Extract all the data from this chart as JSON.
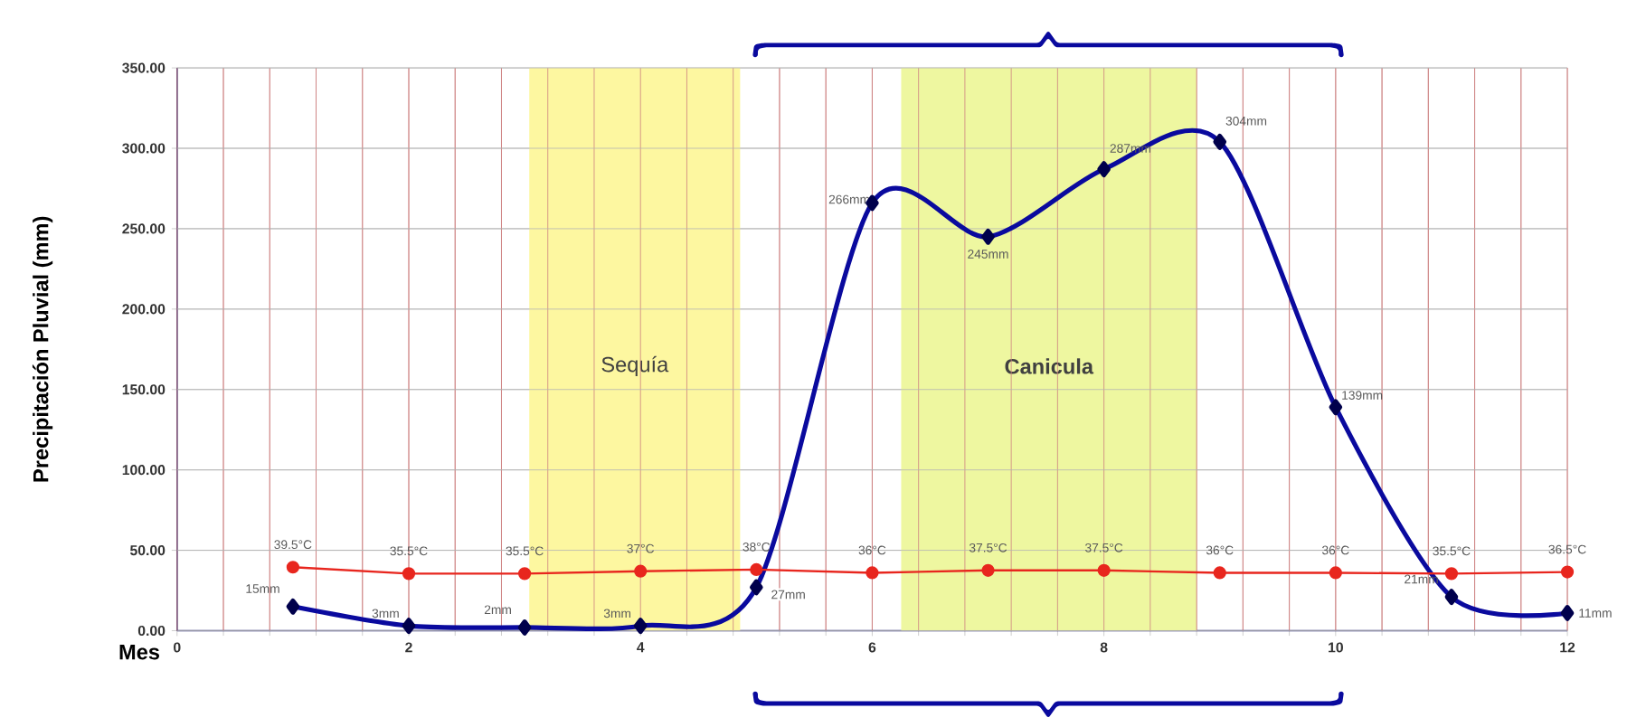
{
  "chart_data": {
    "type": "line",
    "xlabel": "Mes",
    "ylabel": "Precipitación Pluvial (mm)",
    "x": [
      1,
      2,
      3,
      4,
      5,
      6,
      7,
      8,
      9,
      10,
      11,
      12
    ],
    "series": [
      {
        "color": "#0a0a9e",
        "marker": "diamond",
        "values": [
          15,
          3,
          2,
          3,
          27,
          266,
          245,
          287,
          304,
          139,
          21,
          11
        ],
        "value_labels": [
          "15mm",
          "3mm",
          "2mm",
          "3mm",
          "27mm",
          "266mm",
          "245mm",
          "287mm",
          "304mm",
          "139mm",
          "21mm",
          "11mm"
        ]
      },
      {
        "color": "#e8261e",
        "marker": "circle",
        "values": [
          39.5,
          35.5,
          35.5,
          37,
          38,
          36,
          37.5,
          37.5,
          36,
          36,
          35.5,
          36.5
        ],
        "value_labels": [
          "39.5°C",
          "35.5°C",
          "35.5°C",
          "37°C",
          "38°C",
          "36°C",
          "37.5°C",
          "37.5°C",
          "36°C",
          "36°C",
          "35.5°C",
          "36.5°C"
        ]
      }
    ],
    "xlim": [
      0,
      12
    ],
    "xticks": [
      0,
      2,
      4,
      6,
      8,
      10,
      12
    ],
    "ylim": [
      0,
      350
    ],
    "yticks": [
      {
        "value": 0,
        "label": "0.00"
      },
      {
        "value": 50,
        "label": "50.00"
      },
      {
        "value": 100,
        "label": "100.00"
      },
      {
        "value": 150,
        "label": "150.00"
      },
      {
        "value": 200,
        "label": "200.00"
      },
      {
        "value": 250,
        "label": "250.00"
      },
      {
        "value": 300,
        "label": "300.00"
      },
      {
        "value": 350,
        "label": "350.00"
      }
    ],
    "bands": [
      {
        "axis": "x",
        "from": 3.04,
        "to": 4.86,
        "label": "Sequía",
        "color": "#fdf7a0"
      },
      {
        "axis": "x",
        "from": 6.25,
        "to": 8.8,
        "label": "Canicula",
        "color": "#eef7a0"
      }
    ],
    "grid": true
  }
}
